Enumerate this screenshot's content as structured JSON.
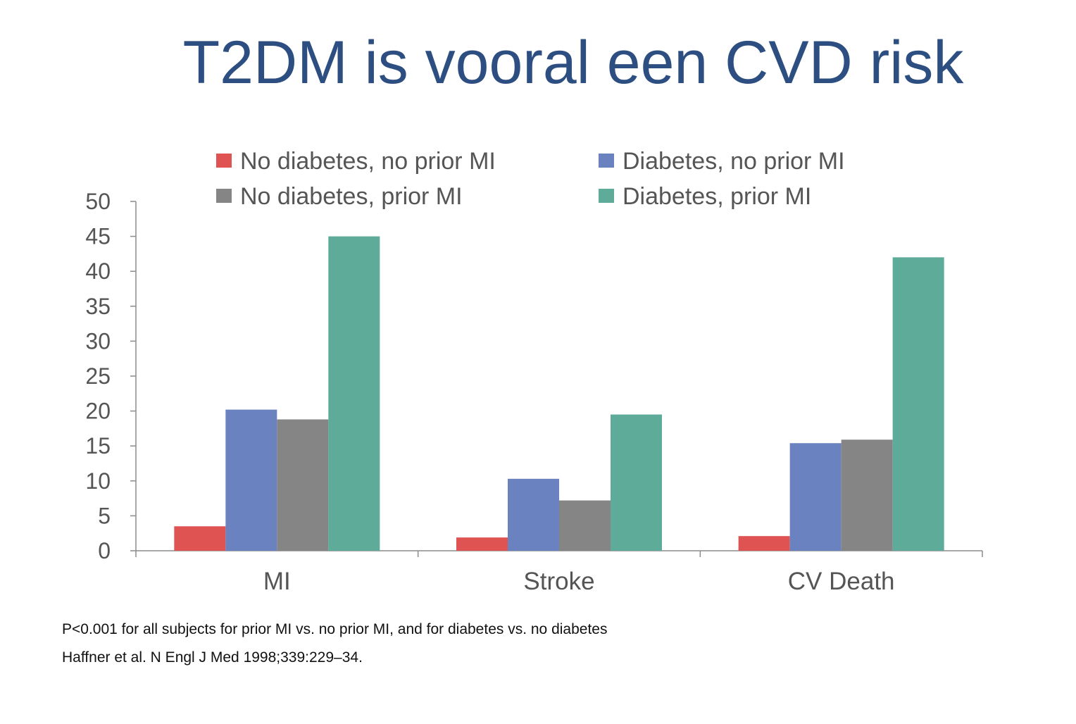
{
  "slide": {
    "title": "T2DM is vooral een CVD risk",
    "footnote": "P<0.001 for all subjects for prior MI vs. no prior MI, and for diabetes vs. no diabetes",
    "citation": "Haffner et al. N Engl J Med 1998;339:229–34."
  },
  "chart_data": {
    "type": "bar",
    "title": "",
    "xlabel": "",
    "ylabel": "",
    "categories": [
      "MI",
      "Stroke",
      "CV Death"
    ],
    "ylim": [
      0,
      50
    ],
    "yticks": [
      0,
      5,
      10,
      15,
      20,
      25,
      30,
      35,
      40,
      45,
      50
    ],
    "grid": false,
    "legend_position": "top",
    "series": [
      {
        "name": "No diabetes, no prior MI",
        "color": "#e05353",
        "values": [
          3.5,
          1.9,
          2.1
        ]
      },
      {
        "name": "Diabetes, no prior MI",
        "color": "#6a82c0",
        "values": [
          20.2,
          10.3,
          15.4
        ]
      },
      {
        "name": "No diabetes, prior MI",
        "color": "#858585",
        "values": [
          18.8,
          7.2,
          15.9
        ]
      },
      {
        "name": "Diabetes, prior MI",
        "color": "#5fab9a",
        "values": [
          45.0,
          19.5,
          42.0
        ]
      }
    ]
  }
}
